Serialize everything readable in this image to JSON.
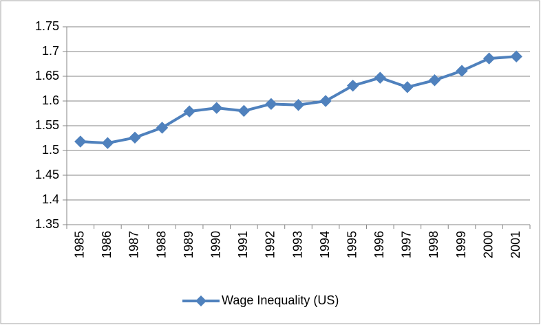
{
  "chart_data": {
    "type": "line",
    "categories": [
      "1985",
      "1986",
      "1987",
      "1988",
      "1989",
      "1990",
      "1991",
      "1992",
      "1993",
      "1994",
      "1995",
      "1996",
      "1997",
      "1998",
      "1999",
      "2000",
      "2001"
    ],
    "series": [
      {
        "name": "Wage Inequality (US)",
        "color": "#4f81bd",
        "values": [
          1.518,
          1.515,
          1.526,
          1.546,
          1.579,
          1.586,
          1.58,
          1.594,
          1.592,
          1.6,
          1.631,
          1.647,
          1.628,
          1.642,
          1.661,
          1.686,
          1.69
        ]
      }
    ],
    "ylim": [
      1.35,
      1.75
    ],
    "yticks": [
      1.35,
      1.4,
      1.45,
      1.5,
      1.55,
      1.6,
      1.65,
      1.7,
      1.75
    ],
    "grid": true,
    "legend": "bottom"
  }
}
